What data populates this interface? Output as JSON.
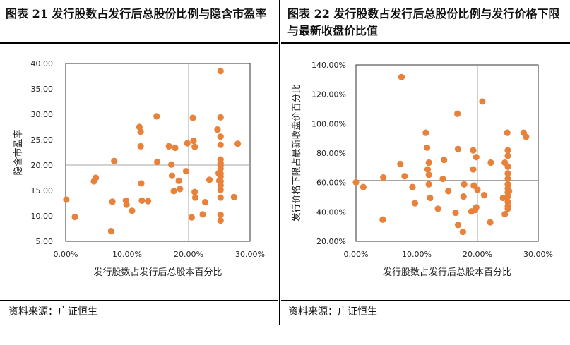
{
  "left": {
    "title": "图表 21 发行股数占发行后总股份比例与隐含市盈率",
    "source": "资料来源：广证恒生",
    "chart_data": {
      "type": "scatter",
      "xlabel": "发行股数占发行后总股本百分比",
      "ylabel": "隐含市盈率",
      "xlim": [
        0,
        0.3
      ],
      "ylim": [
        5,
        40
      ],
      "xticks": [
        "0.00%",
        "10.00%",
        "20.00%",
        "30.00%"
      ],
      "yticks": [
        "5.00",
        "10.00",
        "15.00",
        "20.00",
        "25.00",
        "30.00",
        "35.00",
        "40.00"
      ],
      "ref_x": 0.2,
      "ref_y": 20,
      "points": [
        [
          0.001,
          13.2
        ],
        [
          0.015,
          9.8
        ],
        [
          0.046,
          16.8
        ],
        [
          0.049,
          17.5
        ],
        [
          0.079,
          20.8
        ],
        [
          0.074,
          7.0
        ],
        [
          0.076,
          12.8
        ],
        [
          0.098,
          13.0
        ],
        [
          0.099,
          12.2
        ],
        [
          0.108,
          11.0
        ],
        [
          0.12,
          27.5
        ],
        [
          0.122,
          26.6
        ],
        [
          0.122,
          23.7
        ],
        [
          0.123,
          16.4
        ],
        [
          0.124,
          13.0
        ],
        [
          0.134,
          12.9
        ],
        [
          0.148,
          29.6
        ],
        [
          0.149,
          20.6
        ],
        [
          0.168,
          23.7
        ],
        [
          0.172,
          20.1
        ],
        [
          0.173,
          17.9
        ],
        [
          0.176,
          14.9
        ],
        [
          0.178,
          23.4
        ],
        [
          0.184,
          16.9
        ],
        [
          0.186,
          15.3
        ],
        [
          0.196,
          18.8
        ],
        [
          0.198,
          24.3
        ],
        [
          0.205,
          9.7
        ],
        [
          0.207,
          29.3
        ],
        [
          0.208,
          24.8
        ],
        [
          0.21,
          23.6
        ],
        [
          0.21,
          14.7
        ],
        [
          0.211,
          13.6
        ],
        [
          0.223,
          10.3
        ],
        [
          0.227,
          12.7
        ],
        [
          0.234,
          17.1
        ],
        [
          0.247,
          27.0
        ],
        [
          0.249,
          18.4
        ],
        [
          0.25,
          16.9
        ],
        [
          0.252,
          38.5
        ],
        [
          0.252,
          29.4
        ],
        [
          0.252,
          25.6
        ],
        [
          0.252,
          24.0
        ],
        [
          0.252,
          21.1
        ],
        [
          0.252,
          20.4
        ],
        [
          0.252,
          19.9
        ],
        [
          0.252,
          19.3
        ],
        [
          0.252,
          18.3
        ],
        [
          0.252,
          17.7
        ],
        [
          0.252,
          16.8
        ],
        [
          0.252,
          16.0
        ],
        [
          0.252,
          15.1
        ],
        [
          0.252,
          13.6
        ],
        [
          0.252,
          10.2
        ],
        [
          0.252,
          9.1
        ],
        [
          0.274,
          13.7
        ],
        [
          0.28,
          24.2
        ]
      ]
    }
  },
  "right": {
    "title": "图表 22 发行股数占发行后总股份比例与发行价格下限与最新收盘价比值",
    "source": "资料来源：广证恒生",
    "chart_data": {
      "type": "scatter",
      "xlabel": "发行股数占发行后总股本百分比",
      "ylabel": "发行价格下限占最新收盘价百分比",
      "xlim": [
        0,
        0.3
      ],
      "ylim": [
        0.2,
        1.5
      ],
      "xticks": [
        "0.00%",
        "10.00%",
        "20.00%",
        "30.00%"
      ],
      "yticks": [
        "20.00%",
        "40.00%",
        "60.00%",
        "80.00%",
        "100.00%",
        "120.00%",
        "140.00%"
      ],
      "ref_x": 0.2,
      "ref_y": 0.65,
      "points": [
        [
          0.0,
          0.635
        ],
        [
          0.012,
          0.6
        ],
        [
          0.044,
          0.36
        ],
        [
          0.045,
          0.67
        ],
        [
          0.073,
          0.77
        ],
        [
          0.075,
          1.41
        ],
        [
          0.08,
          0.68
        ],
        [
          0.093,
          0.6
        ],
        [
          0.097,
          0.48
        ],
        [
          0.115,
          1.0
        ],
        [
          0.117,
          0.89
        ],
        [
          0.118,
          0.73
        ],
        [
          0.12,
          0.78
        ],
        [
          0.12,
          0.69
        ],
        [
          0.12,
          0.62
        ],
        [
          0.122,
          0.52
        ],
        [
          0.135,
          0.44
        ],
        [
          0.143,
          0.66
        ],
        [
          0.145,
          0.8
        ],
        [
          0.152,
          0.57
        ],
        [
          0.164,
          0.41
        ],
        [
          0.167,
          1.14
        ],
        [
          0.168,
          0.88
        ],
        [
          0.168,
          0.32
        ],
        [
          0.176,
          0.27
        ],
        [
          0.177,
          0.53
        ],
        [
          0.178,
          0.62
        ],
        [
          0.19,
          0.42
        ],
        [
          0.193,
          0.87
        ],
        [
          0.193,
          0.73
        ],
        [
          0.194,
          0.61
        ],
        [
          0.196,
          0.43
        ],
        [
          0.198,
          0.45
        ],
        [
          0.198,
          0.82
        ],
        [
          0.2,
          0.58
        ],
        [
          0.208,
          1.23
        ],
        [
          0.211,
          0.54
        ],
        [
          0.221,
          0.34
        ],
        [
          0.222,
          0.78
        ],
        [
          0.242,
          0.52
        ],
        [
          0.245,
          0.78
        ],
        [
          0.245,
          0.4
        ],
        [
          0.249,
          1.0
        ],
        [
          0.25,
          0.87
        ],
        [
          0.25,
          0.83
        ],
        [
          0.25,
          0.75
        ],
        [
          0.25,
          0.7
        ],
        [
          0.25,
          0.66
        ],
        [
          0.25,
          0.62
        ],
        [
          0.25,
          0.59
        ],
        [
          0.25,
          0.56
        ],
        [
          0.25,
          0.53
        ],
        [
          0.25,
          0.49
        ],
        [
          0.25,
          0.46
        ],
        [
          0.25,
          0.44
        ],
        [
          0.252,
          0.57
        ],
        [
          0.276,
          1.0
        ],
        [
          0.28,
          0.97
        ]
      ]
    }
  },
  "colors": {
    "point": "#E8823B",
    "ref_line": "#a6a6a6",
    "frame": "#333333"
  }
}
